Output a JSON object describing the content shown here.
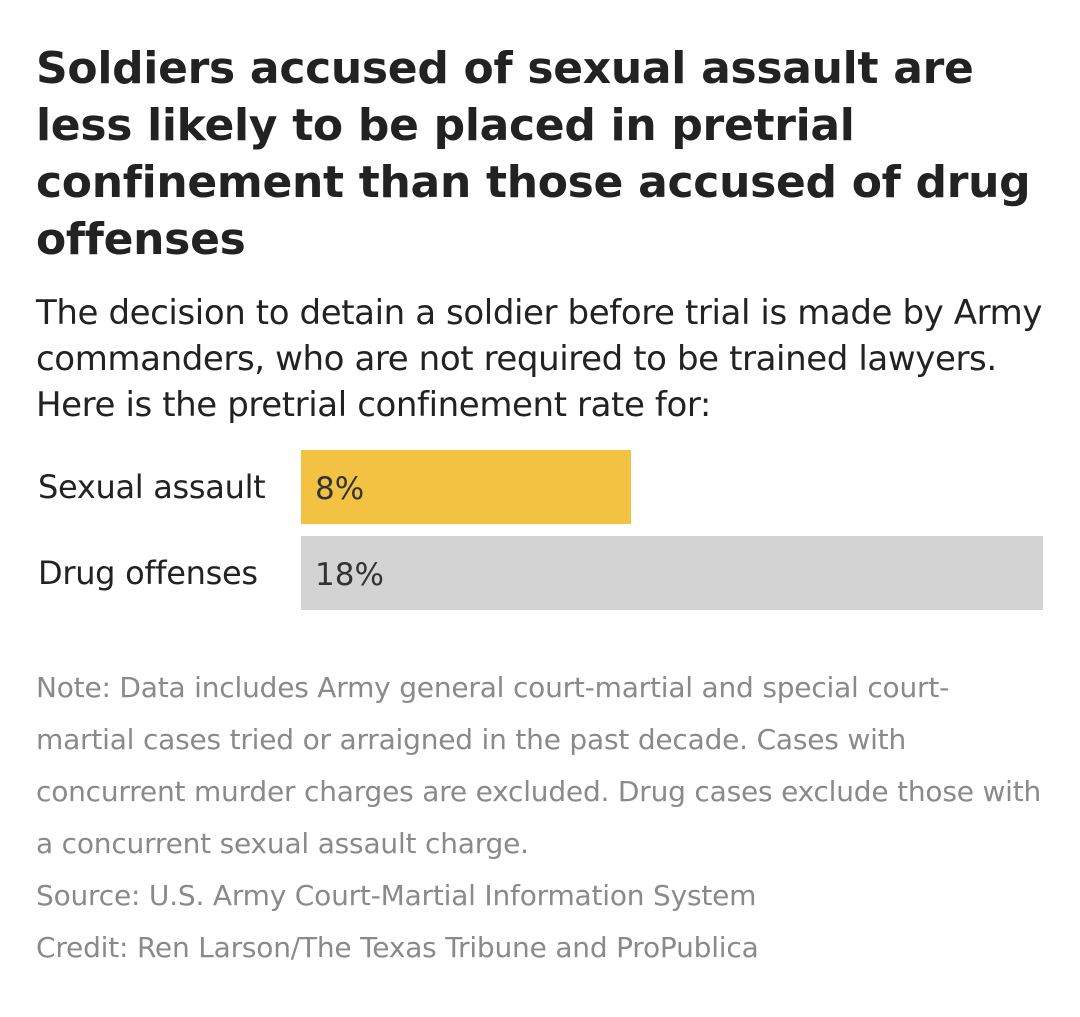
{
  "colors": {
    "highlight": "#f4c242",
    "neutral": "#d3d3d3"
  },
  "chart_data": {
    "type": "bar",
    "orientation": "horizontal",
    "title": "Soldiers accused of sexual assault are less likely to be placed in pretrial confinement than those accused of drug offenses",
    "subtitle": "The decision to detain a soldier before trial is made by Army commanders, who are not required to be trained lawyers. Here is the pretrial confinement rate for:",
    "categories": [
      "Sexual assault",
      "Drug offenses"
    ],
    "values": [
      8,
      18
    ],
    "value_labels": [
      "8%",
      "18%"
    ],
    "units": "%",
    "xlim": [
      0,
      18
    ],
    "grid": false,
    "legend": "none"
  },
  "footer": {
    "note": "Note: Data includes Army general court-martial and special court-martial cases tried or arraigned in the past decade. Cases with concurrent murder charges are excluded. Drug cases exclude those with a concurrent sexual assault charge.",
    "source": "Source: U.S. Army Court-Martial Information System",
    "credit": "Credit: Ren Larson/The Texas Tribune and ProPublica"
  }
}
